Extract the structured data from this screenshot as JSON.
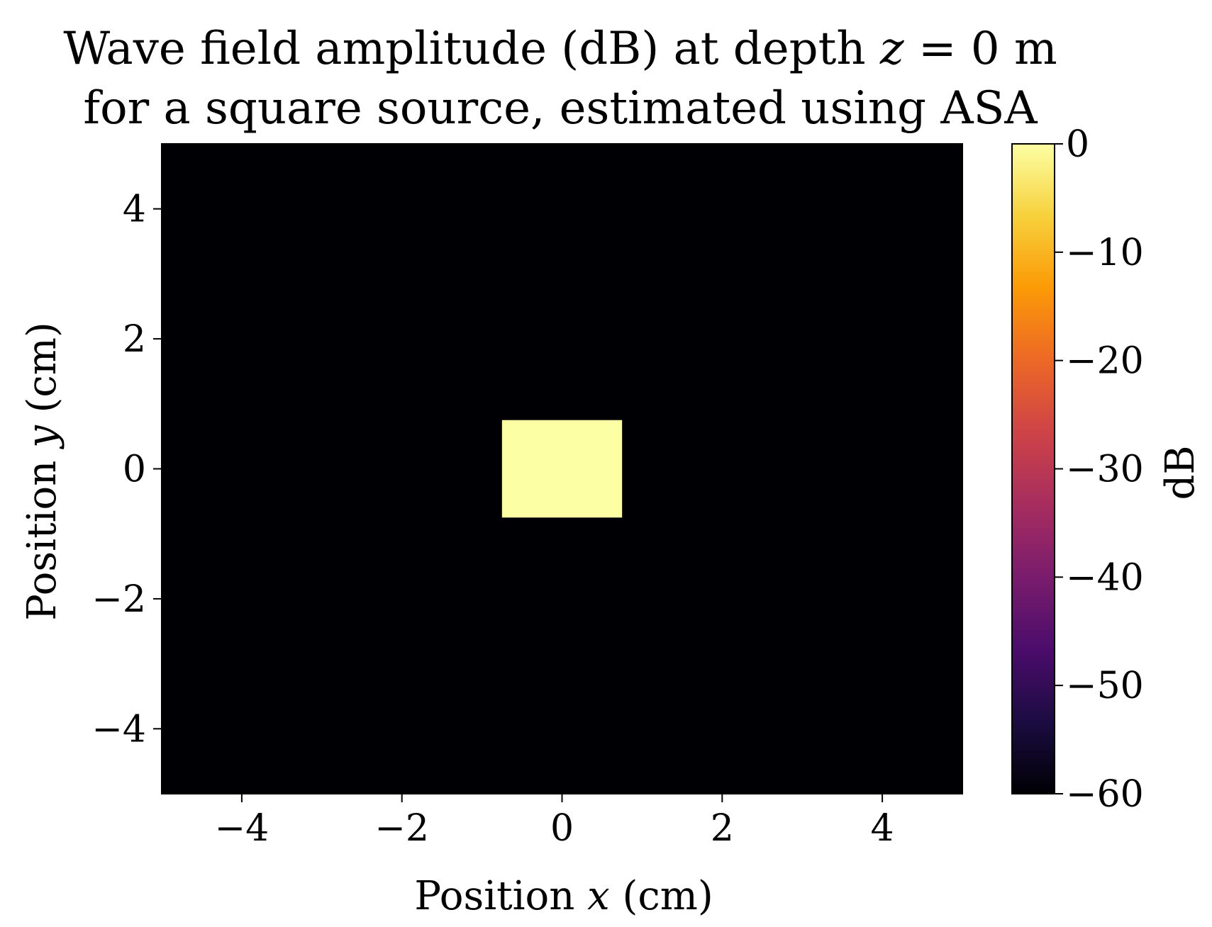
{
  "chart_data": {
    "type": "heatmap",
    "title": {
      "line1_pre": "Wave field amplitude (dB) at depth ",
      "line1_var": "z",
      "line1_post": " = 0 m",
      "line2": "for a square source, estimated using ASA"
    },
    "xlabel": {
      "pre": "Position ",
      "var": "x",
      "post": " (cm)"
    },
    "ylabel": {
      "pre": "Position ",
      "var": "y",
      "post": " (cm)"
    },
    "xlim": [
      -5,
      5
    ],
    "ylim": [
      -5,
      5
    ],
    "xticks": [
      -4,
      -2,
      0,
      2,
      4
    ],
    "yticks": [
      -4,
      -2,
      0,
      2,
      4
    ],
    "xtick_labels": [
      "−4",
      "−2",
      "0",
      "2",
      "4"
    ],
    "ytick_labels": [
      "−4",
      "−2",
      "0",
      "2",
      "4"
    ],
    "background_value_db": -60,
    "source_region": {
      "x": [
        -0.75,
        0.75
      ],
      "y": [
        -0.75,
        0.75
      ],
      "value_db": 0
    },
    "colorbar": {
      "label": "dB",
      "range": [
        -60,
        0
      ],
      "ticks": [
        0,
        -10,
        -20,
        -30,
        -40,
        -50,
        -60
      ],
      "tick_labels": [
        "0",
        "−10",
        "−20",
        "−30",
        "−40",
        "−50",
        "−60"
      ],
      "colormap": "inferno",
      "colors": [
        "#fcffa4",
        "#f7d13d",
        "#fb9b06",
        "#ed6925",
        "#cf4446",
        "#a52c60",
        "#781c6d",
        "#4a0c6b",
        "#1b0c41",
        "#000004"
      ]
    }
  }
}
